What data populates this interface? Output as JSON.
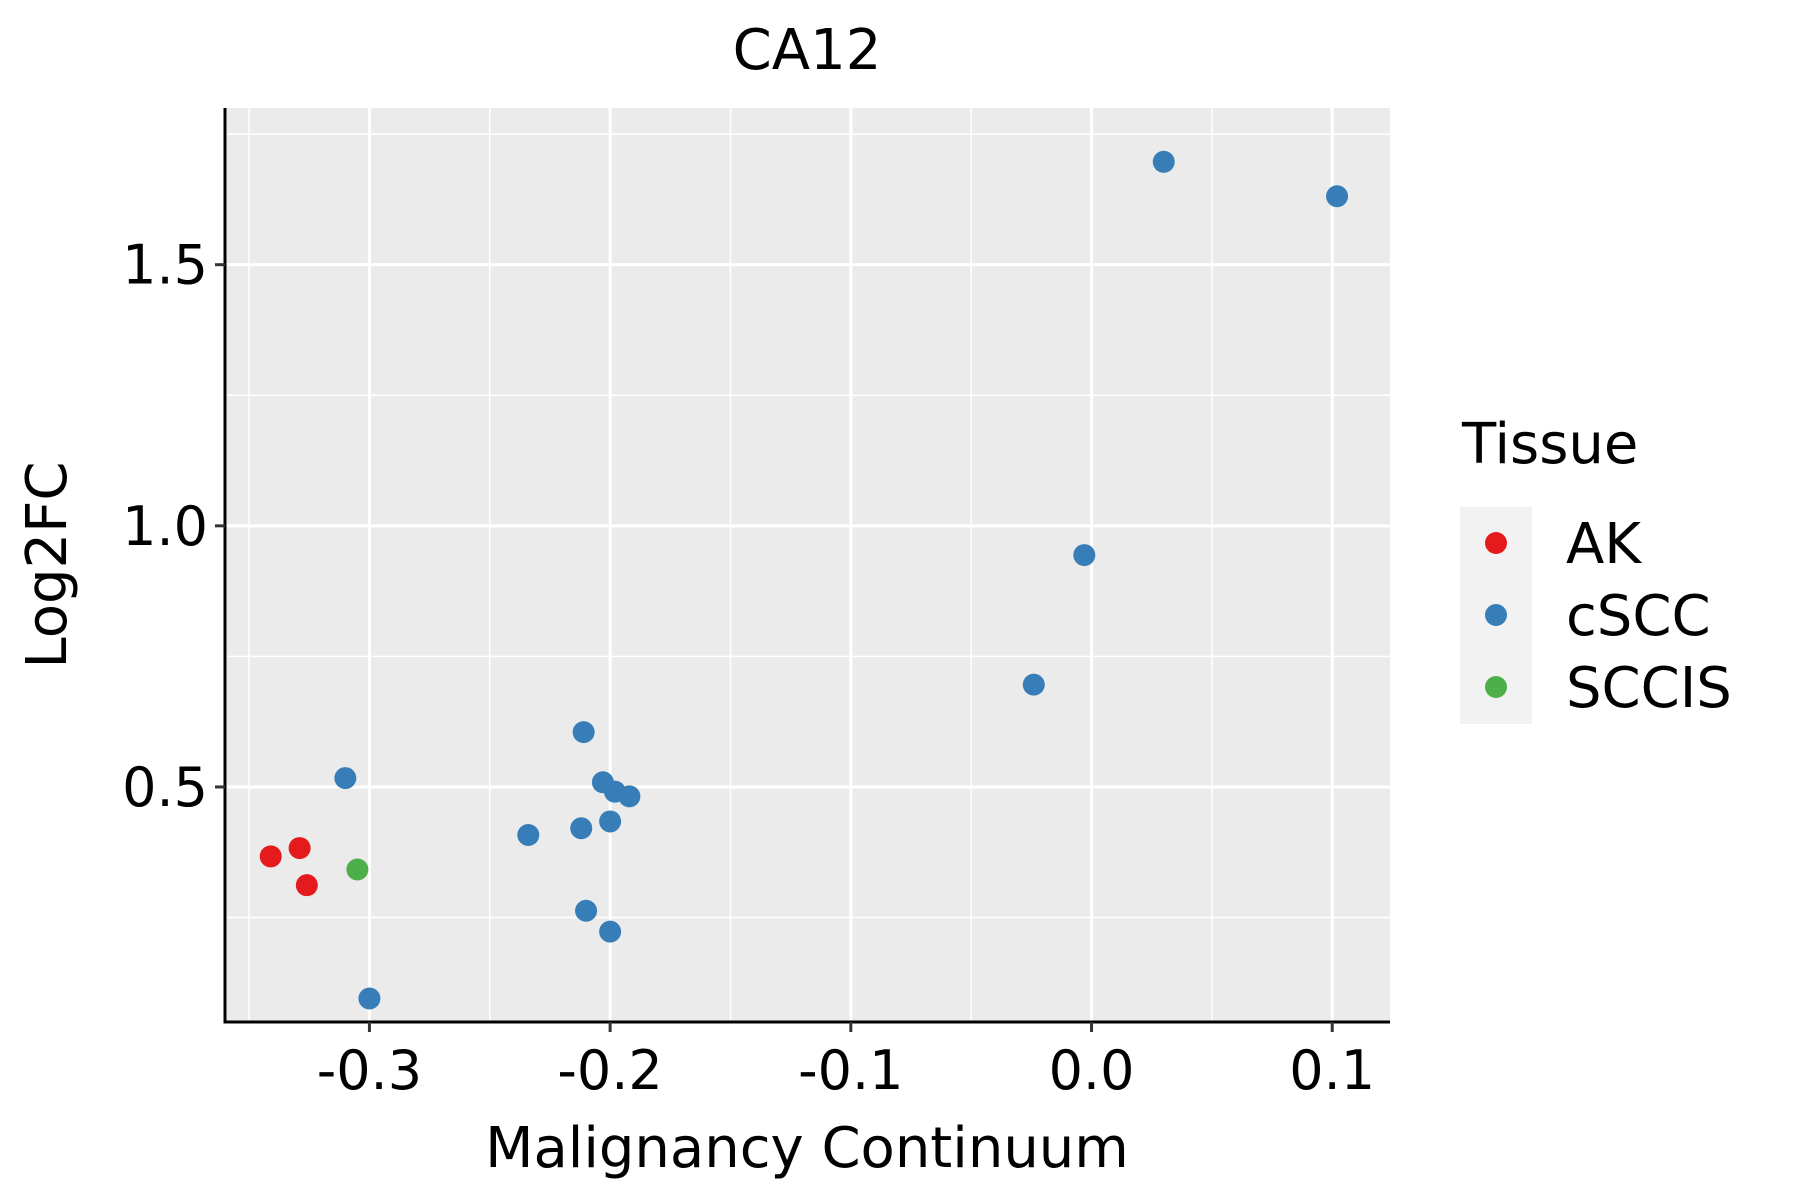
{
  "chart_data": {
    "type": "scatter",
    "title": "CA12",
    "xlabel": "Malignancy Continuum",
    "ylabel": "Log2FC",
    "xlim": [
      -0.36,
      0.124
    ],
    "ylim": [
      0.05,
      1.8
    ],
    "x_ticks": [
      -0.3,
      -0.2,
      -0.1,
      0.0,
      0.1
    ],
    "x_tick_labels": [
      "-0.3",
      "-0.2",
      "-0.1",
      "0.0",
      "0.1"
    ],
    "y_ticks": [
      0.5,
      1.0,
      1.5
    ],
    "y_tick_labels": [
      "0.5",
      "1.0",
      "1.5"
    ],
    "grid": true,
    "legend": {
      "title": "Tissue",
      "placement": "right",
      "entries": [
        {
          "label": "AK",
          "color": "#e41a1c"
        },
        {
          "label": "cSCC",
          "color": "#377eb8"
        },
        {
          "label": "SCCIS",
          "color": "#4daf4a"
        }
      ]
    },
    "series": [
      {
        "name": "AK",
        "color": "#e41a1c",
        "points": [
          {
            "x": -0.341,
            "y": 0.367
          },
          {
            "x": -0.329,
            "y": 0.383
          },
          {
            "x": -0.326,
            "y": 0.312
          }
        ]
      },
      {
        "name": "cSCC",
        "color": "#377eb8",
        "points": [
          {
            "x": -0.31,
            "y": 0.517
          },
          {
            "x": -0.3,
            "y": 0.095
          },
          {
            "x": -0.234,
            "y": 0.408
          },
          {
            "x": -0.211,
            "y": 0.605
          },
          {
            "x": -0.212,
            "y": 0.421
          },
          {
            "x": -0.21,
            "y": 0.263
          },
          {
            "x": -0.203,
            "y": 0.509
          },
          {
            "x": -0.198,
            "y": 0.491
          },
          {
            "x": -0.192,
            "y": 0.482
          },
          {
            "x": -0.2,
            "y": 0.434
          },
          {
            "x": -0.2,
            "y": 0.223
          },
          {
            "x": -0.024,
            "y": 0.696
          },
          {
            "x": -0.003,
            "y": 0.944
          },
          {
            "x": 0.03,
            "y": 1.697
          },
          {
            "x": 0.102,
            "y": 1.631
          }
        ]
      },
      {
        "name": "SCCIS",
        "color": "#4daf4a",
        "points": [
          {
            "x": -0.305,
            "y": 0.342
          }
        ]
      }
    ]
  }
}
